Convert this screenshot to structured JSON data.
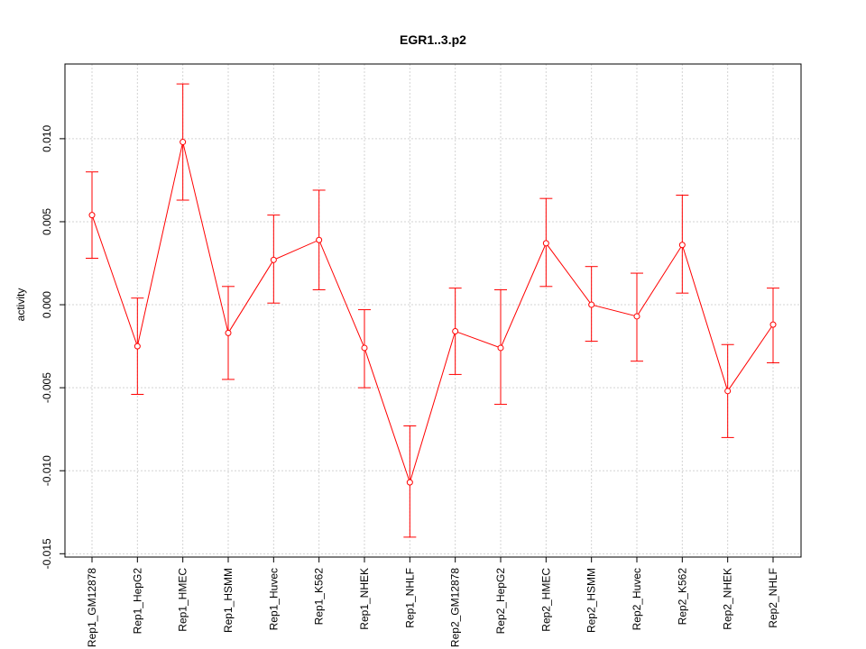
{
  "chart_data": {
    "type": "line",
    "title": "EGR1..3.p2",
    "xlabel": "",
    "ylabel": "activity",
    "categories": [
      "Rep1_GM12878",
      "Rep1_HepG2",
      "Rep1_HMEC",
      "Rep1_HSMM",
      "Rep1_Huvec",
      "Rep1_K562",
      "Rep1_NHEK",
      "Rep1_NHLF",
      "Rep2_GM12878",
      "Rep2_HepG2",
      "Rep2_HMEC",
      "Rep2_HSMM",
      "Rep2_Huvec",
      "Rep2_K562",
      "Rep2_NHEK",
      "Rep2_NHLF"
    ],
    "series": [
      {
        "values": [
          0.0054,
          -0.0025,
          0.0098,
          -0.0017,
          0.0027,
          0.0039,
          -0.0026,
          -0.0107,
          -0.0016,
          -0.0026,
          0.0037,
          0.0,
          -0.0007,
          0.0036,
          -0.0052,
          -0.0012
        ],
        "upper": [
          0.008,
          0.0004,
          0.0133,
          0.0011,
          0.0054,
          0.0069,
          -0.0003,
          -0.0073,
          0.001,
          0.0009,
          0.0064,
          0.0023,
          0.0019,
          0.0066,
          -0.0024,
          0.001
        ],
        "lower": [
          0.0028,
          -0.0054,
          0.0063,
          -0.0045,
          0.0001,
          0.0009,
          -0.005,
          -0.014,
          -0.0042,
          -0.006,
          0.0011,
          -0.0022,
          -0.0034,
          0.0007,
          -0.008,
          -0.0035
        ]
      }
    ],
    "yticks": [
      -0.015,
      -0.01,
      -0.005,
      0.0,
      0.005,
      0.01
    ],
    "ytick_labels": [
      "-0.015",
      "-0.010",
      "-0.005",
      "0.000",
      "0.005",
      "0.010"
    ],
    "ylim": [
      -0.0152,
      0.0145
    ],
    "grid": true,
    "color": "#ff0000",
    "grid_color": "#d3d3d3"
  }
}
